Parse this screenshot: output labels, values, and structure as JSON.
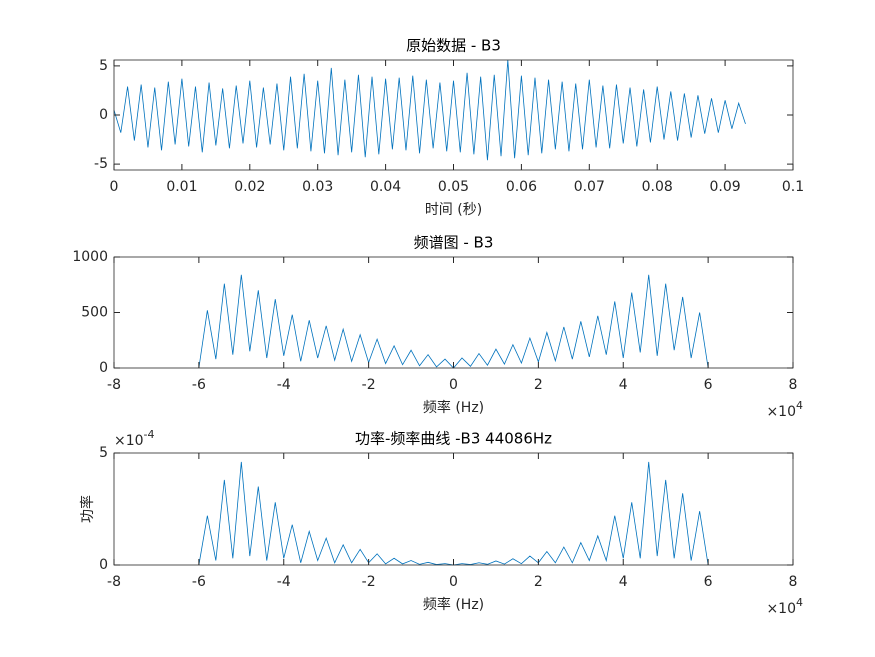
{
  "chart_data": [
    {
      "type": "line",
      "title": "原始数据 - B3",
      "xlabel": "时间 (秒)",
      "color": "#0072bd",
      "x": [
        0,
        0.001,
        0.002,
        0.003,
        0.004,
        0.005,
        0.006,
        0.007,
        0.008,
        0.009,
        0.01,
        0.011,
        0.012,
        0.013,
        0.014,
        0.015,
        0.016,
        0.017,
        0.018,
        0.019,
        0.02,
        0.021,
        0.022,
        0.023,
        0.024,
        0.025,
        0.026,
        0.027,
        0.028,
        0.029,
        0.03,
        0.031,
        0.032,
        0.033,
        0.034,
        0.035,
        0.036,
        0.037,
        0.038,
        0.039,
        0.04,
        0.041,
        0.042,
        0.043,
        0.044,
        0.045,
        0.046,
        0.047,
        0.048,
        0.049,
        0.05,
        0.051,
        0.052,
        0.053,
        0.054,
        0.055,
        0.056,
        0.057,
        0.058,
        0.059,
        0.06,
        0.061,
        0.062,
        0.063,
        0.064,
        0.065,
        0.066,
        0.067,
        0.068,
        0.069,
        0.07,
        0.071,
        0.072,
        0.073,
        0.074,
        0.075,
        0.076,
        0.077,
        0.078,
        0.079,
        0.08,
        0.081,
        0.082,
        0.083,
        0.084,
        0.085,
        0.086,
        0.087,
        0.088,
        0.089,
        0.09,
        0.091,
        0.092,
        0.093
      ],
      "values": [
        0.5,
        -1.8,
        2.9,
        -2.6,
        3.1,
        -3.3,
        2.8,
        -3.6,
        3.4,
        -3.0,
        3.7,
        -3.2,
        2.9,
        -3.8,
        3.3,
        -3.1,
        2.7,
        -3.4,
        3.0,
        -2.9,
        3.5,
        -3.3,
        2.8,
        -3.0,
        3.2,
        -3.6,
        3.9,
        -3.4,
        4.2,
        -3.7,
        3.5,
        -3.9,
        4.8,
        -4.1,
        3.6,
        -3.8,
        4.1,
        -4.3,
        3.9,
        -4.0,
        3.7,
        -3.5,
        3.8,
        -3.6,
        4.0,
        -3.9,
        3.6,
        -3.4,
        3.3,
        -3.7,
        3.5,
        -3.8,
        4.3,
        -4.0,
        3.9,
        -4.6,
        4.1,
        -4.2,
        5.6,
        -4.4,
        4.0,
        -4.1,
        3.8,
        -3.9,
        3.6,
        -3.5,
        3.4,
        -3.7,
        3.2,
        -3.5,
        3.6,
        -3.3,
        3.0,
        -3.4,
        3.1,
        -2.9,
        2.8,
        -3.2,
        2.6,
        -2.8,
        2.9,
        -2.5,
        2.4,
        -2.6,
        2.2,
        -2.3,
        2.0,
        -1.9,
        1.7,
        -1.8,
        1.5,
        -1.4,
        1.2,
        -0.9
      ],
      "xlim": [
        0,
        0.1
      ],
      "xticks": [
        0,
        0.01,
        0.02,
        0.03,
        0.04,
        0.05,
        0.06,
        0.07,
        0.08,
        0.09,
        0.1
      ],
      "ylim": [
        -5.6,
        5.6
      ],
      "yticks": [
        -5,
        0,
        5
      ]
    },
    {
      "type": "line",
      "title": "频谱图 - B3",
      "xlabel": "频率 (Hz)",
      "color": "#0072bd",
      "x": [
        -60000,
        -58000,
        -56000,
        -54000,
        -52000,
        -50000,
        -48000,
        -46000,
        -44000,
        -42000,
        -40000,
        -38000,
        -36000,
        -34000,
        -32000,
        -30000,
        -28000,
        -26000,
        -24000,
        -22000,
        -20000,
        -18000,
        -16000,
        -14000,
        -12000,
        -10000,
        -8000,
        -6000,
        -4000,
        -2000,
        0,
        2000,
        4000,
        6000,
        8000,
        10000,
        12000,
        14000,
        16000,
        18000,
        20000,
        22000,
        24000,
        26000,
        28000,
        30000,
        32000,
        34000,
        36000,
        38000,
        40000,
        42000,
        44000,
        46000,
        48000,
        50000,
        52000,
        54000,
        56000,
        58000,
        60000
      ],
      "values": [
        0,
        520,
        80,
        760,
        120,
        840,
        150,
        700,
        90,
        620,
        110,
        480,
        60,
        430,
        90,
        380,
        70,
        350,
        60,
        300,
        50,
        260,
        40,
        200,
        30,
        160,
        20,
        120,
        10,
        80,
        0,
        90,
        15,
        130,
        25,
        170,
        35,
        210,
        45,
        270,
        55,
        320,
        65,
        370,
        80,
        420,
        100,
        470,
        120,
        600,
        90,
        680,
        140,
        840,
        110,
        760,
        160,
        640,
        90,
        500,
        0
      ],
      "xlim": [
        -80000,
        80000
      ],
      "xticks": [
        {
          "value": -80000,
          "label": "-8"
        },
        {
          "value": -60000,
          "label": "-6"
        },
        {
          "value": -40000,
          "label": "-4"
        },
        {
          "value": -20000,
          "label": "-2"
        },
        0,
        {
          "value": 20000,
          "label": "2"
        },
        {
          "value": 40000,
          "label": "4"
        },
        {
          "value": 60000,
          "label": "6"
        },
        {
          "value": 80000,
          "label": "8"
        }
      ],
      "x_multiplier": {
        "base": "×10",
        "exponent": "4"
      },
      "ylim": [
        0,
        1000
      ],
      "yticks": [
        0,
        500,
        1000
      ]
    },
    {
      "type": "line",
      "title": "功率-频率曲线 -B3 44086Hz",
      "xlabel": "频率 (Hz)",
      "ylabel": "功率",
      "color": "#0072bd",
      "x": [
        -60000,
        -58000,
        -56000,
        -54000,
        -52000,
        -50000,
        -48000,
        -46000,
        -44000,
        -42000,
        -40000,
        -38000,
        -36000,
        -34000,
        -32000,
        -30000,
        -28000,
        -26000,
        -24000,
        -22000,
        -20000,
        -18000,
        -16000,
        -14000,
        -12000,
        -10000,
        -8000,
        -6000,
        -4000,
        -2000,
        0,
        2000,
        4000,
        6000,
        8000,
        10000,
        12000,
        14000,
        16000,
        18000,
        20000,
        22000,
        24000,
        26000,
        28000,
        30000,
        32000,
        34000,
        36000,
        38000,
        40000,
        42000,
        44000,
        46000,
        48000,
        50000,
        52000,
        54000,
        56000,
        58000,
        60000
      ],
      "values": [
        0,
        0.00022,
        2e-05,
        0.00038,
        3e-05,
        0.00046,
        4e-05,
        0.00035,
        2e-05,
        0.00028,
        3e-05,
        0.00018,
        1e-05,
        0.00015,
        2e-05,
        0.00012,
        1e-05,
        9e-05,
        1e-05,
        7e-05,
        1e-05,
        5e-05,
        5e-06,
        3e-05,
        5e-06,
        2e-05,
        3e-06,
        1.2e-05,
        2e-06,
        6e-06,
        0,
        6e-06,
        2e-06,
        1e-05,
        3e-06,
        1.8e-05,
        4e-06,
        2.8e-05,
        6e-06,
        4e-05,
        1e-05,
        6e-05,
        1e-05,
        8e-05,
        1e-05,
        0.0001,
        2e-05,
        0.00013,
        2e-05,
        0.00022,
        3e-05,
        0.00028,
        3e-05,
        0.00046,
        4e-05,
        0.00038,
        3e-05,
        0.00032,
        2e-05,
        0.00024,
        0
      ],
      "xlim": [
        -80000,
        80000
      ],
      "xticks": [
        {
          "value": -80000,
          "label": "-8"
        },
        {
          "value": -60000,
          "label": "-6"
        },
        {
          "value": -40000,
          "label": "-4"
        },
        {
          "value": -20000,
          "label": "-2"
        },
        0,
        {
          "value": 20000,
          "label": "2"
        },
        {
          "value": 40000,
          "label": "4"
        },
        {
          "value": 60000,
          "label": "6"
        },
        {
          "value": 80000,
          "label": "8"
        }
      ],
      "x_multiplier": {
        "base": "×10",
        "exponent": "4"
      },
      "ylim": [
        0,
        0.0005
      ],
      "yticks": [
        0,
        {
          "value": 0.0005,
          "label": "5"
        }
      ],
      "y_multiplier": {
        "base": "×10",
        "exponent": "-4"
      }
    }
  ]
}
